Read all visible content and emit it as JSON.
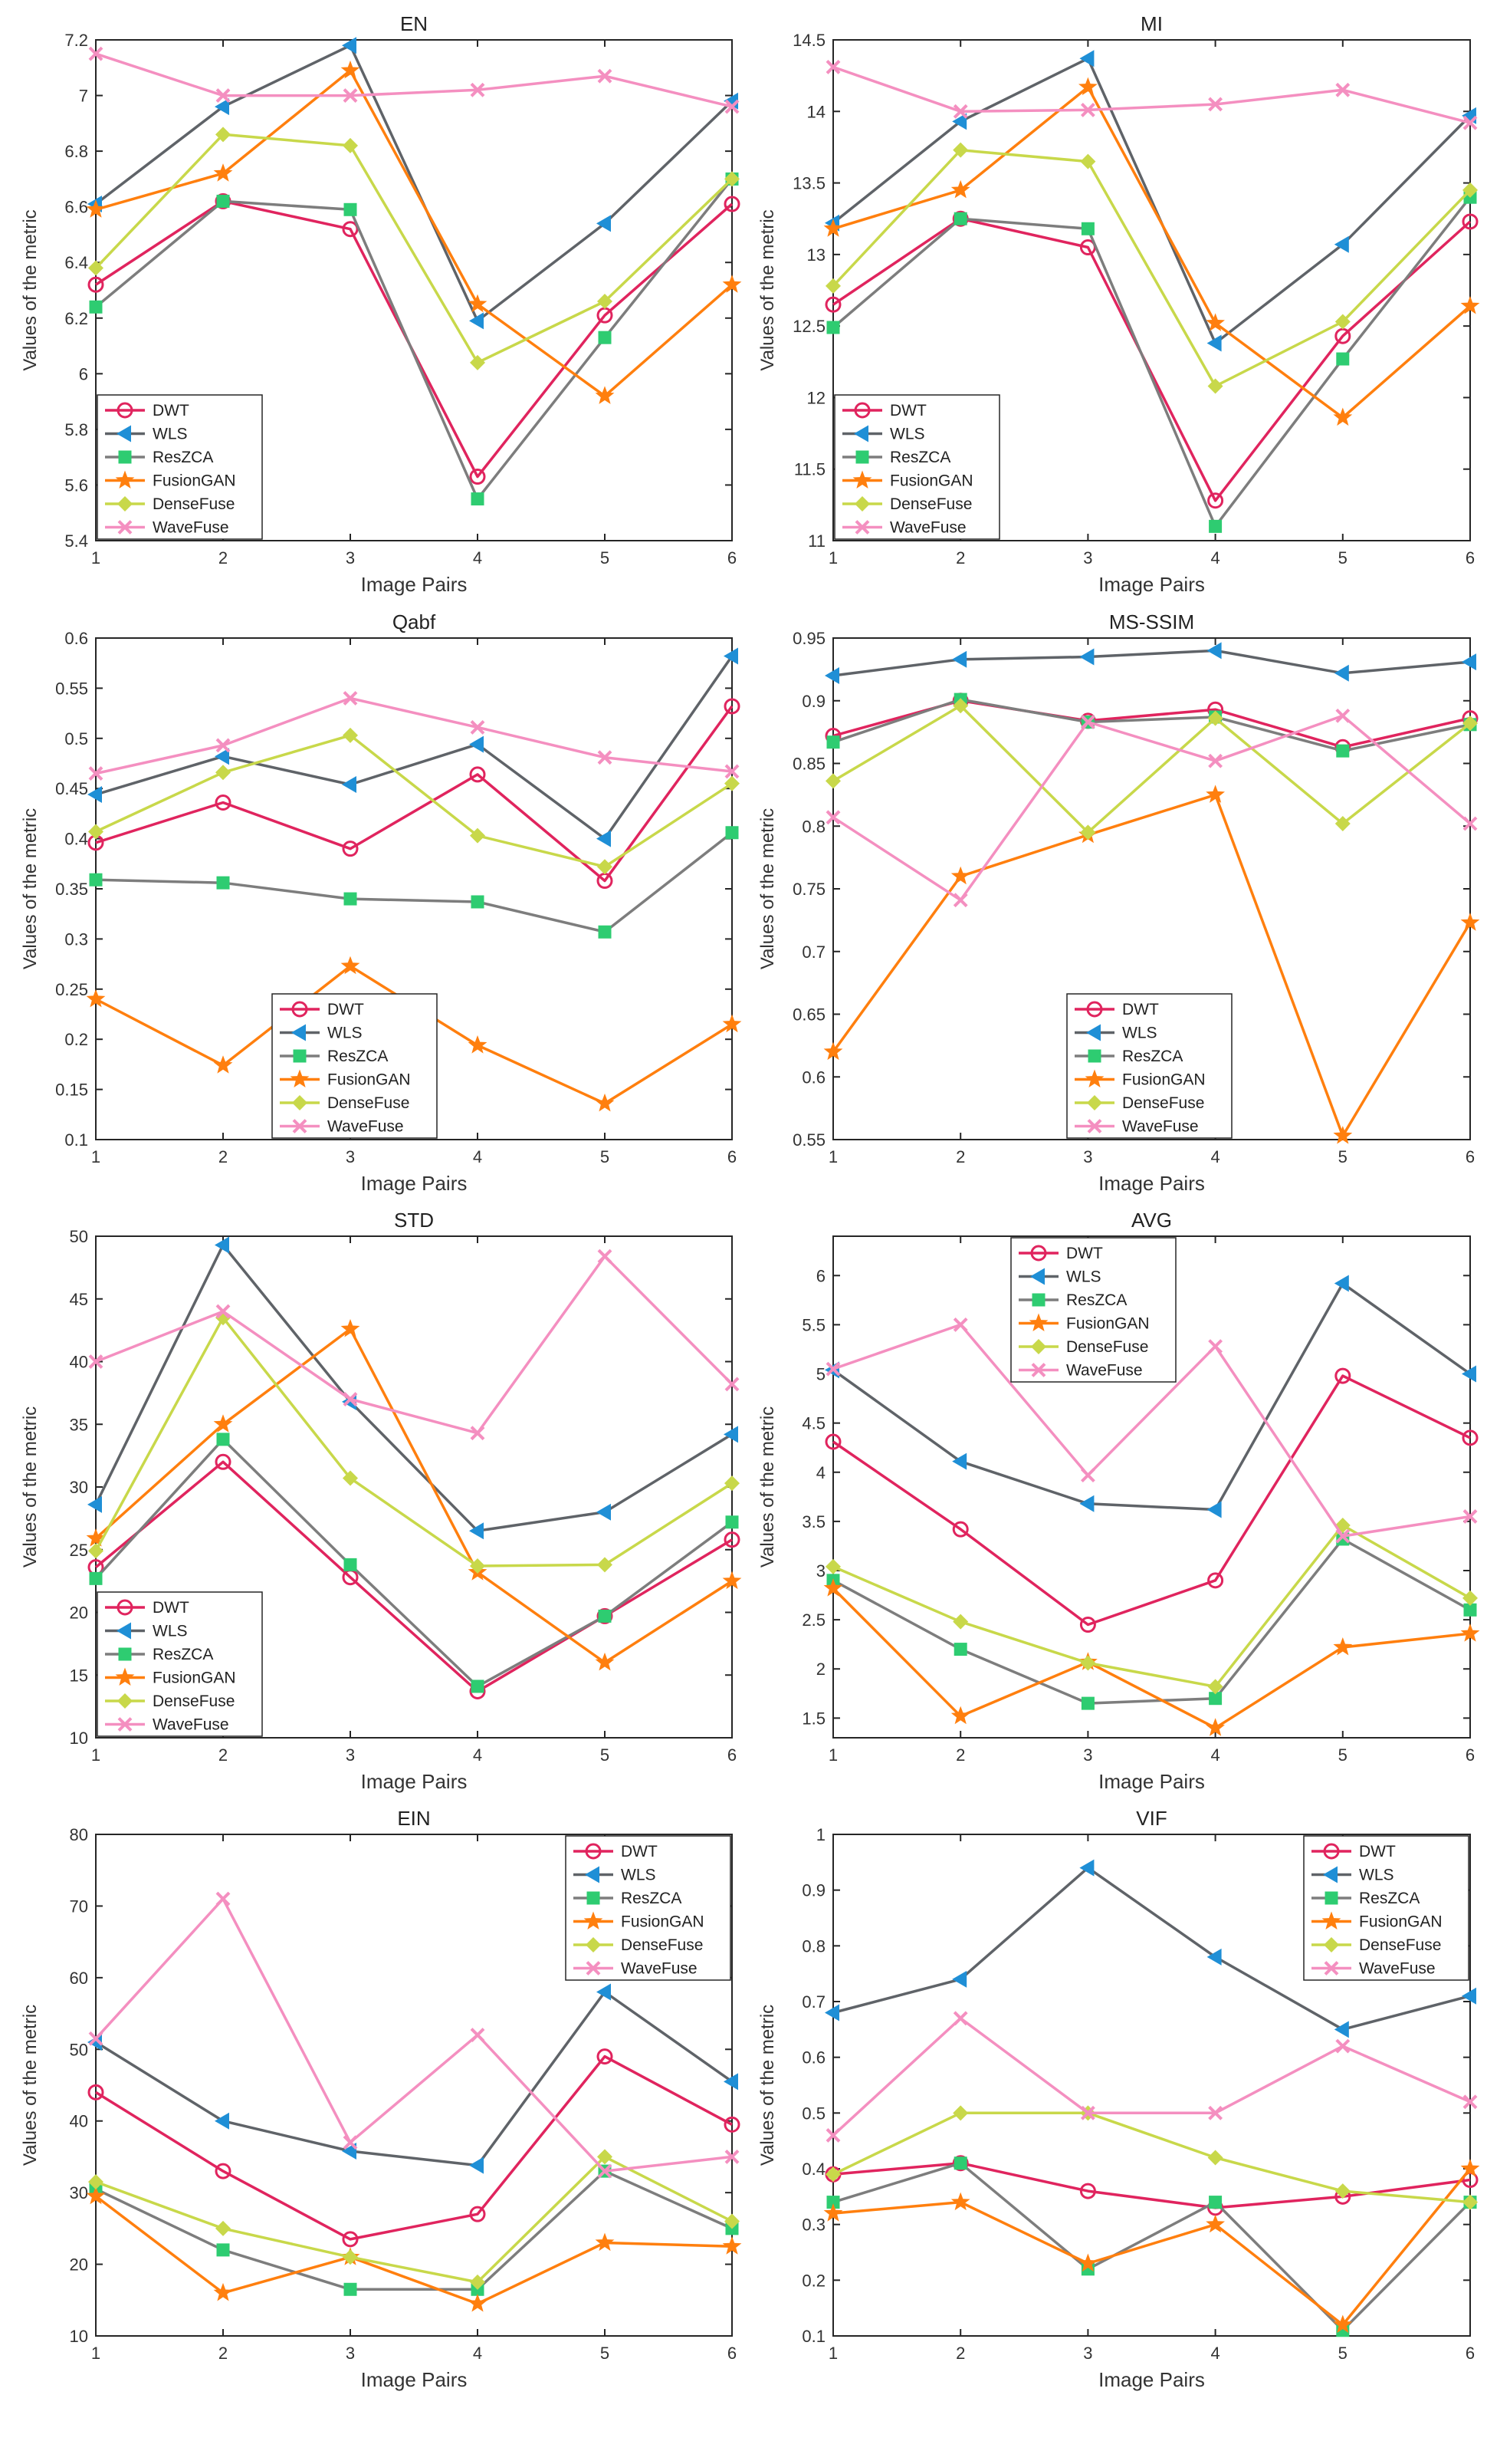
{
  "figure": {
    "xlabel": "Image Pairs",
    "ylabel": "Values of the metric",
    "series_names": [
      "DWT",
      "WLS",
      "ResZCA",
      "FusionGAN",
      "DenseFuse",
      "WaveFuse"
    ],
    "colors": {
      "DWT": "#e0245e",
      "WLS": "#5f6368",
      "ResZCA": "#7d7d7d",
      "FusionGAN": "#ff7f0e",
      "DenseFuse": "#c8d84a",
      "WaveFuse": "#f48fc0",
      "marker_green": "#2ecc71",
      "marker_blue": "#1f8fd6"
    }
  },
  "chart_data": [
    {
      "type": "line",
      "title": "EN",
      "xlabel": "Image Pairs",
      "ylabel": "Values of the metric",
      "x": [
        1,
        2,
        3,
        4,
        5,
        6
      ],
      "xlim": [
        1,
        6
      ],
      "ylim": [
        5.4,
        7.2
      ],
      "yticks": [
        "5.4",
        "5.6",
        "5.8",
        "6",
        "6.2",
        "6.4",
        "6.6",
        "6.8",
        "7",
        "7.2"
      ],
      "legend": "bottom-left",
      "grid": false,
      "series": [
        {
          "name": "DWT",
          "values": [
            6.32,
            6.62,
            6.52,
            5.63,
            6.21,
            6.61
          ]
        },
        {
          "name": "WLS",
          "values": [
            6.61,
            6.96,
            7.18,
            6.19,
            6.54,
            6.98
          ]
        },
        {
          "name": "ResZCA",
          "values": [
            6.24,
            6.62,
            6.59,
            5.55,
            6.13,
            6.7
          ]
        },
        {
          "name": "FusionGAN",
          "values": [
            6.59,
            6.72,
            7.09,
            6.25,
            5.92,
            6.32
          ]
        },
        {
          "name": "DenseFuse",
          "values": [
            6.38,
            6.86,
            6.82,
            6.04,
            6.26,
            6.7
          ]
        },
        {
          "name": "WaveFuse",
          "values": [
            7.15,
            7.0,
            7.0,
            7.02,
            7.07,
            6.96
          ]
        }
      ]
    },
    {
      "type": "line",
      "title": "MI",
      "xlabel": "Image Pairs",
      "ylabel": "Values of the metric",
      "x": [
        1,
        2,
        3,
        4,
        5,
        6
      ],
      "xlim": [
        1,
        6
      ],
      "ylim": [
        11,
        14.5
      ],
      "yticks": [
        "11",
        "11.5",
        "12",
        "12.5",
        "13",
        "13.5",
        "14",
        "14.5"
      ],
      "legend": "bottom-left",
      "grid": false,
      "series": [
        {
          "name": "DWT",
          "values": [
            12.65,
            13.25,
            13.05,
            11.28,
            12.43,
            13.23
          ]
        },
        {
          "name": "WLS",
          "values": [
            13.22,
            13.93,
            14.37,
            12.38,
            13.07,
            13.97
          ]
        },
        {
          "name": "ResZCA",
          "values": [
            12.49,
            13.25,
            13.18,
            11.1,
            12.27,
            13.4
          ]
        },
        {
          "name": "FusionGAN",
          "values": [
            13.18,
            13.45,
            14.17,
            12.52,
            11.86,
            12.64
          ]
        },
        {
          "name": "DenseFuse",
          "values": [
            12.78,
            13.73,
            13.65,
            12.08,
            12.53,
            13.45
          ]
        },
        {
          "name": "WaveFuse",
          "values": [
            14.31,
            14.0,
            14.01,
            14.05,
            14.15,
            13.92
          ]
        }
      ]
    },
    {
      "type": "line",
      "title": "Qabf",
      "xlabel": "Image Pairs",
      "ylabel": "Values of the metric",
      "x": [
        1,
        2,
        3,
        4,
        5,
        6
      ],
      "xlim": [
        1,
        6
      ],
      "ylim": [
        0.1,
        0.6
      ],
      "yticks": [
        "0.1",
        "0.15",
        "0.2",
        "0.25",
        "0.3",
        "0.35",
        "0.4",
        "0.45",
        "0.5",
        "0.55",
        "0.6"
      ],
      "legend": "bottom-center",
      "grid": false,
      "series": [
        {
          "name": "DWT",
          "values": [
            0.396,
            0.436,
            0.39,
            0.464,
            0.358,
            0.532
          ]
        },
        {
          "name": "WLS",
          "values": [
            0.444,
            0.482,
            0.454,
            0.494,
            0.4,
            0.582
          ]
        },
        {
          "name": "ResZCA",
          "values": [
            0.359,
            0.356,
            0.34,
            0.337,
            0.307,
            0.406
          ]
        },
        {
          "name": "FusionGAN",
          "values": [
            0.24,
            0.174,
            0.273,
            0.194,
            0.136,
            0.215
          ]
        },
        {
          "name": "DenseFuse",
          "values": [
            0.407,
            0.466,
            0.503,
            0.403,
            0.372,
            0.455
          ]
        },
        {
          "name": "WaveFuse",
          "values": [
            0.465,
            0.493,
            0.54,
            0.511,
            0.481,
            0.467
          ]
        }
      ]
    },
    {
      "type": "line",
      "title": "MS-SSIM",
      "xlabel": "Image Pairs",
      "ylabel": "Values of the metric",
      "x": [
        1,
        2,
        3,
        4,
        5,
        6
      ],
      "xlim": [
        1,
        6
      ],
      "ylim": [
        0.55,
        0.95
      ],
      "yticks": [
        "0.55",
        "0.6",
        "0.65",
        "0.7",
        "0.75",
        "0.8",
        "0.85",
        "0.9",
        "0.95"
      ],
      "legend": "bottom-right",
      "grid": false,
      "series": [
        {
          "name": "DWT",
          "values": [
            0.872,
            0.9,
            0.884,
            0.893,
            0.863,
            0.886
          ]
        },
        {
          "name": "WLS",
          "values": [
            0.92,
            0.933,
            0.935,
            0.94,
            0.922,
            0.931
          ]
        },
        {
          "name": "ResZCA",
          "values": [
            0.867,
            0.901,
            0.883,
            0.887,
            0.86,
            0.881
          ]
        },
        {
          "name": "FusionGAN",
          "values": [
            0.62,
            0.76,
            0.793,
            0.825,
            0.553,
            0.723
          ]
        },
        {
          "name": "DenseFuse",
          "values": [
            0.836,
            0.896,
            0.795,
            0.886,
            0.802,
            0.882
          ]
        },
        {
          "name": "WaveFuse",
          "values": [
            0.807,
            0.741,
            0.883,
            0.852,
            0.888,
            0.802
          ]
        }
      ]
    },
    {
      "type": "line",
      "title": "STD",
      "xlabel": "Image Pairs",
      "ylabel": "Values of the metric",
      "x": [
        1,
        2,
        3,
        4,
        5,
        6
      ],
      "xlim": [
        1,
        6
      ],
      "ylim": [
        10,
        50
      ],
      "yticks": [
        "10",
        "15",
        "20",
        "25",
        "30",
        "35",
        "40",
        "45",
        "50"
      ],
      "legend": "bottom-left",
      "grid": false,
      "series": [
        {
          "name": "DWT",
          "values": [
            23.6,
            32.0,
            22.8,
            13.7,
            19.7,
            25.8
          ]
        },
        {
          "name": "WLS",
          "values": [
            28.6,
            49.3,
            36.8,
            26.5,
            28.0,
            34.2
          ]
        },
        {
          "name": "ResZCA",
          "values": [
            22.7,
            33.8,
            23.8,
            14.1,
            19.7,
            27.2
          ]
        },
        {
          "name": "FusionGAN",
          "values": [
            25.9,
            35.0,
            42.6,
            23.2,
            16.0,
            22.5
          ]
        },
        {
          "name": "DenseFuse",
          "values": [
            24.9,
            43.5,
            30.7,
            23.7,
            23.8,
            30.3
          ]
        },
        {
          "name": "WaveFuse",
          "values": [
            40.0,
            44.0,
            37.0,
            34.3,
            48.4,
            38.2
          ]
        }
      ]
    },
    {
      "type": "line",
      "title": "AVG",
      "xlabel": "Image Pairs",
      "ylabel": "Values of the metric",
      "x": [
        1,
        2,
        3,
        4,
        5,
        6
      ],
      "xlim": [
        1,
        6
      ],
      "ylim": [
        1.3,
        6.4
      ],
      "yticks": [
        "1.5",
        "2",
        "2.5",
        "3",
        "3.5",
        "4",
        "4.5",
        "5",
        "5.5",
        "6"
      ],
      "legend": "top-left",
      "grid": false,
      "series": [
        {
          "name": "DWT",
          "values": [
            4.31,
            3.42,
            2.45,
            2.9,
            4.98,
            4.35
          ]
        },
        {
          "name": "WLS",
          "values": [
            5.04,
            4.11,
            3.68,
            3.62,
            5.92,
            5.0
          ]
        },
        {
          "name": "ResZCA",
          "values": [
            2.9,
            2.2,
            1.65,
            1.7,
            3.32,
            2.6
          ]
        },
        {
          "name": "FusionGAN",
          "values": [
            2.82,
            1.52,
            2.07,
            1.4,
            2.22,
            2.36
          ]
        },
        {
          "name": "DenseFuse",
          "values": [
            3.04,
            2.48,
            2.06,
            1.82,
            3.46,
            2.72
          ]
        },
        {
          "name": "WaveFuse",
          "values": [
            5.05,
            5.5,
            3.97,
            5.28,
            3.35,
            3.55
          ]
        }
      ]
    },
    {
      "type": "line",
      "title": "EIN",
      "xlabel": "Image Pairs",
      "ylabel": "Values of the metric",
      "x": [
        1,
        2,
        3,
        4,
        5,
        6
      ],
      "xlim": [
        1,
        6
      ],
      "ylim": [
        10,
        80
      ],
      "yticks": [
        "10",
        "20",
        "30",
        "40",
        "50",
        "60",
        "70",
        "80"
      ],
      "legend": "top-right",
      "grid": false,
      "series": [
        {
          "name": "DWT",
          "values": [
            44.0,
            33.0,
            23.5,
            27.0,
            49.0,
            39.5
          ]
        },
        {
          "name": "WLS",
          "values": [
            51.0,
            40.0,
            35.8,
            33.8,
            58.0,
            45.5
          ]
        },
        {
          "name": "ResZCA",
          "values": [
            30.5,
            22.0,
            16.5,
            16.5,
            33.0,
            25.0
          ]
        },
        {
          "name": "FusionGAN",
          "values": [
            29.5,
            16.0,
            21.0,
            14.5,
            23.0,
            22.5
          ]
        },
        {
          "name": "DenseFuse",
          "values": [
            31.5,
            25.0,
            21.0,
            17.5,
            35.0,
            26.0
          ]
        },
        {
          "name": "WaveFuse",
          "values": [
            51.5,
            71.0,
            37.0,
            52.0,
            33.0,
            35.0
          ]
        }
      ]
    },
    {
      "type": "line",
      "title": "VIF",
      "xlabel": "Image Pairs",
      "ylabel": "Values of the metric",
      "x": [
        1,
        2,
        3,
        4,
        5,
        6
      ],
      "xlim": [
        1,
        6
      ],
      "ylim": [
        0.1,
        1.0
      ],
      "yticks": [
        "0.1",
        "0.2",
        "0.3",
        "0.4",
        "0.5",
        "0.6",
        "0.7",
        "0.8",
        "0.9",
        "1"
      ],
      "legend": "top-right",
      "grid": false,
      "series": [
        {
          "name": "DWT",
          "values": [
            0.39,
            0.41,
            0.36,
            0.33,
            0.35,
            0.38
          ]
        },
        {
          "name": "WLS",
          "values": [
            0.68,
            0.74,
            0.94,
            0.78,
            0.65,
            0.71
          ]
        },
        {
          "name": "ResZCA",
          "values": [
            0.34,
            0.41,
            0.22,
            0.34,
            0.11,
            0.34
          ]
        },
        {
          "name": "FusionGAN",
          "values": [
            0.32,
            0.34,
            0.23,
            0.3,
            0.12,
            0.4
          ]
        },
        {
          "name": "DenseFuse",
          "values": [
            0.39,
            0.5,
            0.5,
            0.42,
            0.36,
            0.34
          ]
        },
        {
          "name": "WaveFuse",
          "values": [
            0.46,
            0.67,
            0.5,
            0.5,
            0.62,
            0.52
          ]
        }
      ]
    }
  ]
}
